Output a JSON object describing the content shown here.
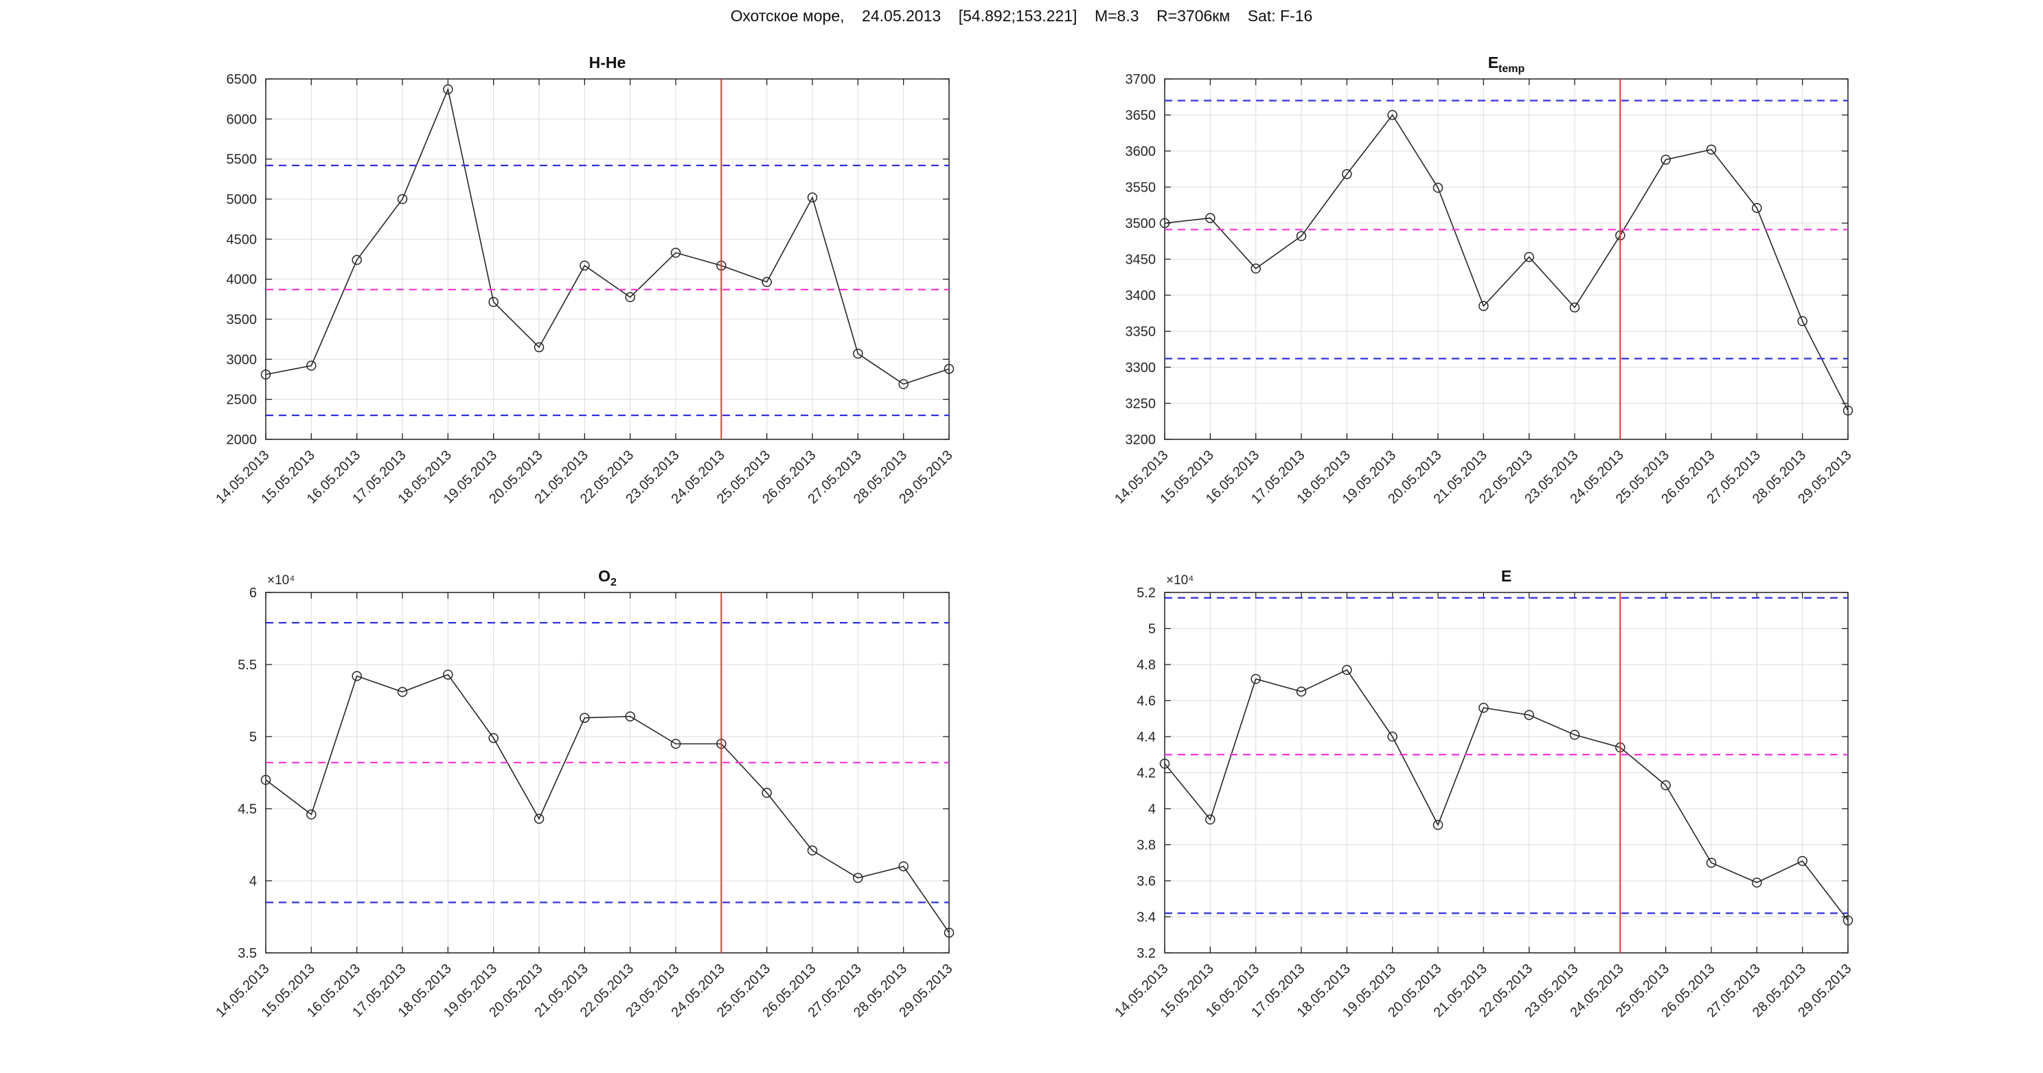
{
  "figure": {
    "title": "Охотское море,    24.05.2013    [54.892;153.221]    M=8.3    R=3706км    Sat: F-16"
  },
  "categories": [
    "14.05.2013",
    "15.05.2013",
    "16.05.2013",
    "17.05.2013",
    "18.05.2013",
    "19.05.2013",
    "20.05.2013",
    "21.05.2013",
    "22.05.2013",
    "23.05.2013",
    "24.05.2013",
    "25.05.2013",
    "26.05.2013",
    "27.05.2013",
    "28.05.2013",
    "29.05.2013"
  ],
  "event_date": "24.05.2013",
  "event_index": 10,
  "colors": {
    "background": "#ffffff",
    "axis": "#1f1f1f",
    "grid": "#dcdcdc",
    "series": "#262626",
    "bounds": "#3030e0",
    "mean": "#f832d8",
    "event": "#e53131",
    "tick_text": "#262626"
  },
  "chart_data": [
    {
      "id": "h-he",
      "type": "line",
      "marker": "circle",
      "title_main": "H-He",
      "title_sub": "",
      "ylim": [
        2000,
        6500
      ],
      "yticks": [
        2000,
        2500,
        3000,
        3500,
        4000,
        4500,
        5000,
        5500,
        6000,
        6500
      ],
      "ytick_labels": [
        "2000",
        "2500",
        "3000",
        "3500",
        "4000",
        "4500",
        "5000",
        "5500",
        "6000",
        "6500"
      ],
      "y_exponent_label": "",
      "values": [
        2810,
        2920,
        4240,
        5000,
        6370,
        3715,
        3150,
        4170,
        3775,
        4330,
        4170,
        3965,
        5020,
        3070,
        2690,
        2880
      ],
      "upper_bound": 5420,
      "lower_bound": 2300,
      "mean": 3870
    },
    {
      "id": "e-temp",
      "type": "line",
      "marker": "circle",
      "title_main": "E",
      "title_sub": "temp",
      "ylim": [
        3200,
        3700
      ],
      "yticks": [
        3200,
        3250,
        3300,
        3350,
        3400,
        3450,
        3500,
        3550,
        3600,
        3650,
        3700
      ],
      "ytick_labels": [
        "3200",
        "3250",
        "3300",
        "3350",
        "3400",
        "3450",
        "3500",
        "3550",
        "3600",
        "3650",
        "3700"
      ],
      "y_exponent_label": "",
      "values": [
        3500,
        3507,
        3437,
        3482,
        3568,
        3650,
        3549,
        3385,
        3453,
        3383,
        3483,
        3588,
        3602,
        3521,
        3364,
        3240
      ],
      "upper_bound": 3670,
      "lower_bound": 3312,
      "mean": 3491
    },
    {
      "id": "o2",
      "type": "line",
      "marker": "circle",
      "title_main": "O",
      "title_sub": "2",
      "ylim": [
        3.5,
        6
      ],
      "yticks": [
        3.5,
        4,
        4.5,
        5,
        5.5,
        6
      ],
      "ytick_labels": [
        "3.5",
        "4",
        "4.5",
        "5",
        "5.5",
        "6"
      ],
      "y_exponent_label": "×10⁴",
      "values": [
        4.7,
        4.46,
        5.42,
        5.31,
        5.43,
        4.99,
        4.43,
        5.13,
        5.14,
        4.95,
        4.95,
        4.61,
        4.21,
        4.02,
        4.1,
        3.64
      ],
      "upper_bound": 5.79,
      "lower_bound": 3.85,
      "mean": 4.82
    },
    {
      "id": "e",
      "type": "line",
      "marker": "circle",
      "title_main": "E",
      "title_sub": "",
      "ylim": [
        3.2,
        5.2
      ],
      "yticks": [
        3.2,
        3.4,
        3.6,
        3.8,
        4,
        4.2,
        4.4,
        4.6,
        4.8,
        5,
        5.2
      ],
      "ytick_labels": [
        "3.2",
        "3.4",
        "3.6",
        "3.8",
        "4",
        "4.2",
        "4.4",
        "4.6",
        "4.8",
        "5",
        "5.2"
      ],
      "y_exponent_label": "×10⁴",
      "values": [
        4.25,
        3.94,
        4.72,
        4.65,
        4.77,
        4.4,
        3.91,
        4.56,
        4.52,
        4.41,
        4.34,
        4.13,
        3.7,
        3.59,
        3.71,
        3.38
      ],
      "upper_bound": 5.17,
      "lower_bound": 3.42,
      "mean": 4.3
    }
  ]
}
